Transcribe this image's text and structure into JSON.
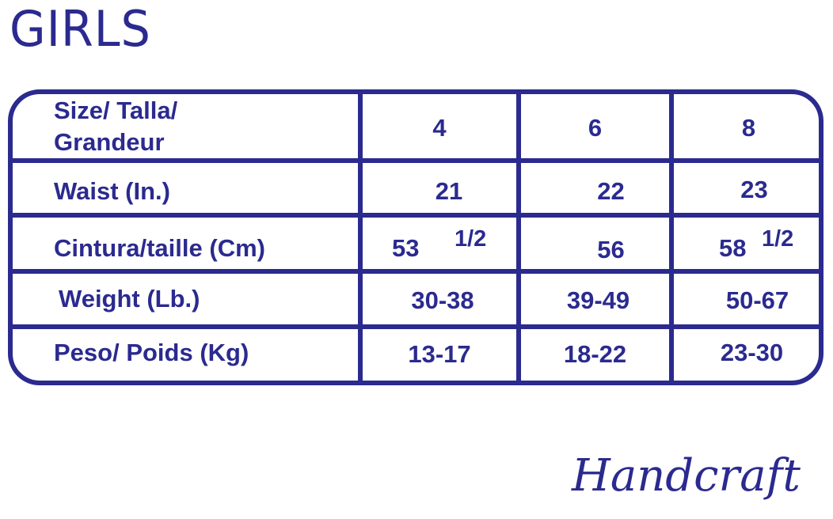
{
  "title": "GIRLS",
  "colors": {
    "primary": "#2b2a8f"
  },
  "table": {
    "header": {
      "label_line1": "Size/ Talla/",
      "label_line2": "Grandeur",
      "sizes": [
        "4",
        "6",
        "8"
      ]
    },
    "rows": [
      {
        "label": "Waist (In.)",
        "values": [
          "21",
          "22",
          "23"
        ]
      },
      {
        "label": "Cintura/taille (Cm)",
        "values": [
          "53",
          "56",
          "58"
        ],
        "fractions": [
          "1/2",
          "",
          "1/2"
        ]
      },
      {
        "label": "Weight (Lb.)",
        "values": [
          "30-38",
          "39-49",
          "50-67"
        ]
      },
      {
        "label": "Peso/ Poids (Kg)",
        "values": [
          "13-17",
          "18-22",
          "23-30"
        ]
      }
    ]
  },
  "brand": "Handcraft"
}
